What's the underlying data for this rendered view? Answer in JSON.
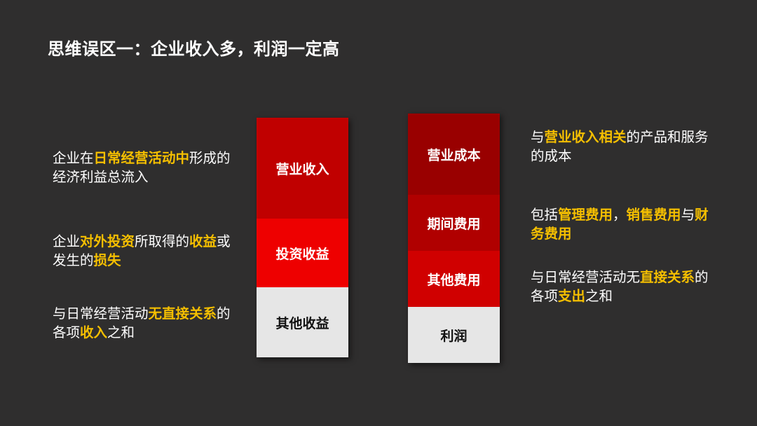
{
  "title": "思维误区一：企业收入多，利润一定高",
  "colors": {
    "background": "#2f2e2e",
    "highlight": "#f5bf00"
  },
  "left_column": [
    {
      "label": "营业收入",
      "color": "#c00000"
    },
    {
      "label": "投资收益",
      "color": "#ee0000"
    },
    {
      "label": "其他收益",
      "color": "#e6e6e6"
    }
  ],
  "right_column": [
    {
      "label": "营业成本",
      "color": "#990000"
    },
    {
      "label": "期间费用",
      "color": "#b00000"
    },
    {
      "label": "其他费用",
      "color": "#d00000"
    },
    {
      "label": "利润",
      "color": "#e6e6e6"
    }
  ],
  "left_descriptions": [
    [
      {
        "text": "企业在",
        "hl": false
      },
      {
        "text": "日常经营活动中",
        "hl": true
      },
      {
        "text": "形成的经济利益总流入",
        "hl": false
      }
    ],
    [
      {
        "text": "企业",
        "hl": false
      },
      {
        "text": "对外投资",
        "hl": true
      },
      {
        "text": "所取得的",
        "hl": false
      },
      {
        "text": "收益",
        "hl": true
      },
      {
        "text": "或发生的",
        "hl": false
      },
      {
        "text": "损失",
        "hl": true
      }
    ],
    [
      {
        "text": "与日常经营活动",
        "hl": false
      },
      {
        "text": "无直接关系",
        "hl": true
      },
      {
        "text": "的各项",
        "hl": false
      },
      {
        "text": "收入",
        "hl": true
      },
      {
        "text": "之和",
        "hl": false
      }
    ]
  ],
  "right_descriptions": [
    [
      {
        "text": "与",
        "hl": false
      },
      {
        "text": "营业收入相关",
        "hl": true
      },
      {
        "text": "的产品和服务的成本",
        "hl": false
      }
    ],
    [
      {
        "text": "包括",
        "hl": false
      },
      {
        "text": "管理费用",
        "hl": true
      },
      {
        "text": "，",
        "hl": false
      },
      {
        "text": "销售费用",
        "hl": true
      },
      {
        "text": "与",
        "hl": false
      },
      {
        "text": "财务费用",
        "hl": true
      }
    ],
    [
      {
        "text": "与日常经营活动无",
        "hl": false
      },
      {
        "text": "直接关系",
        "hl": true
      },
      {
        "text": "的各项",
        "hl": false
      },
      {
        "text": "支出",
        "hl": true
      },
      {
        "text": "之和",
        "hl": false
      }
    ]
  ]
}
